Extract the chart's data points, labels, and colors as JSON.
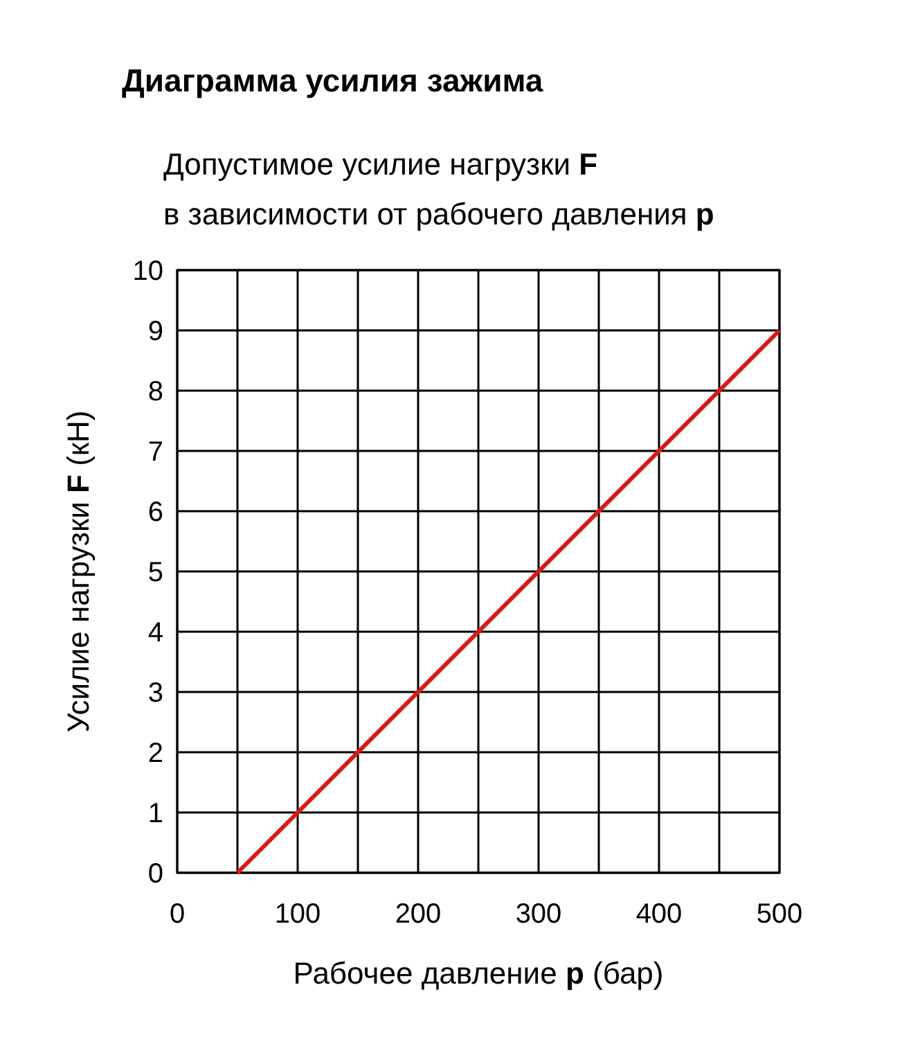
{
  "chart_data": {
    "type": "line",
    "title": "Диаграмма усилия зажима",
    "subtitle": "Допустимое усилие нагрузки F\nв зависимости от рабочего давления p",
    "xlabel": "Рабочее давление p (бар)",
    "ylabel": "Усилие нагрузки F (кН)",
    "x": [
      50,
      500
    ],
    "series": [
      {
        "color": "#d7191c",
        "values": [
          0,
          9
        ]
      }
    ],
    "xlim": [
      0,
      500
    ],
    "xticks": [
      0,
      {
        "value": 50,
        "label": null
      },
      100,
      {
        "value": 150,
        "label": null
      },
      200,
      {
        "value": 250,
        "label": null
      },
      300,
      {
        "value": 350,
        "label": null
      },
      400,
      {
        "value": 450,
        "label": null
      },
      500
    ],
    "ylim": [
      0,
      10
    ],
    "yticks": [
      0,
      1,
      2,
      3,
      4,
      5,
      6,
      7,
      8,
      9,
      10
    ],
    "grid": true,
    "marker": "none",
    "line_style": "solid"
  }
}
